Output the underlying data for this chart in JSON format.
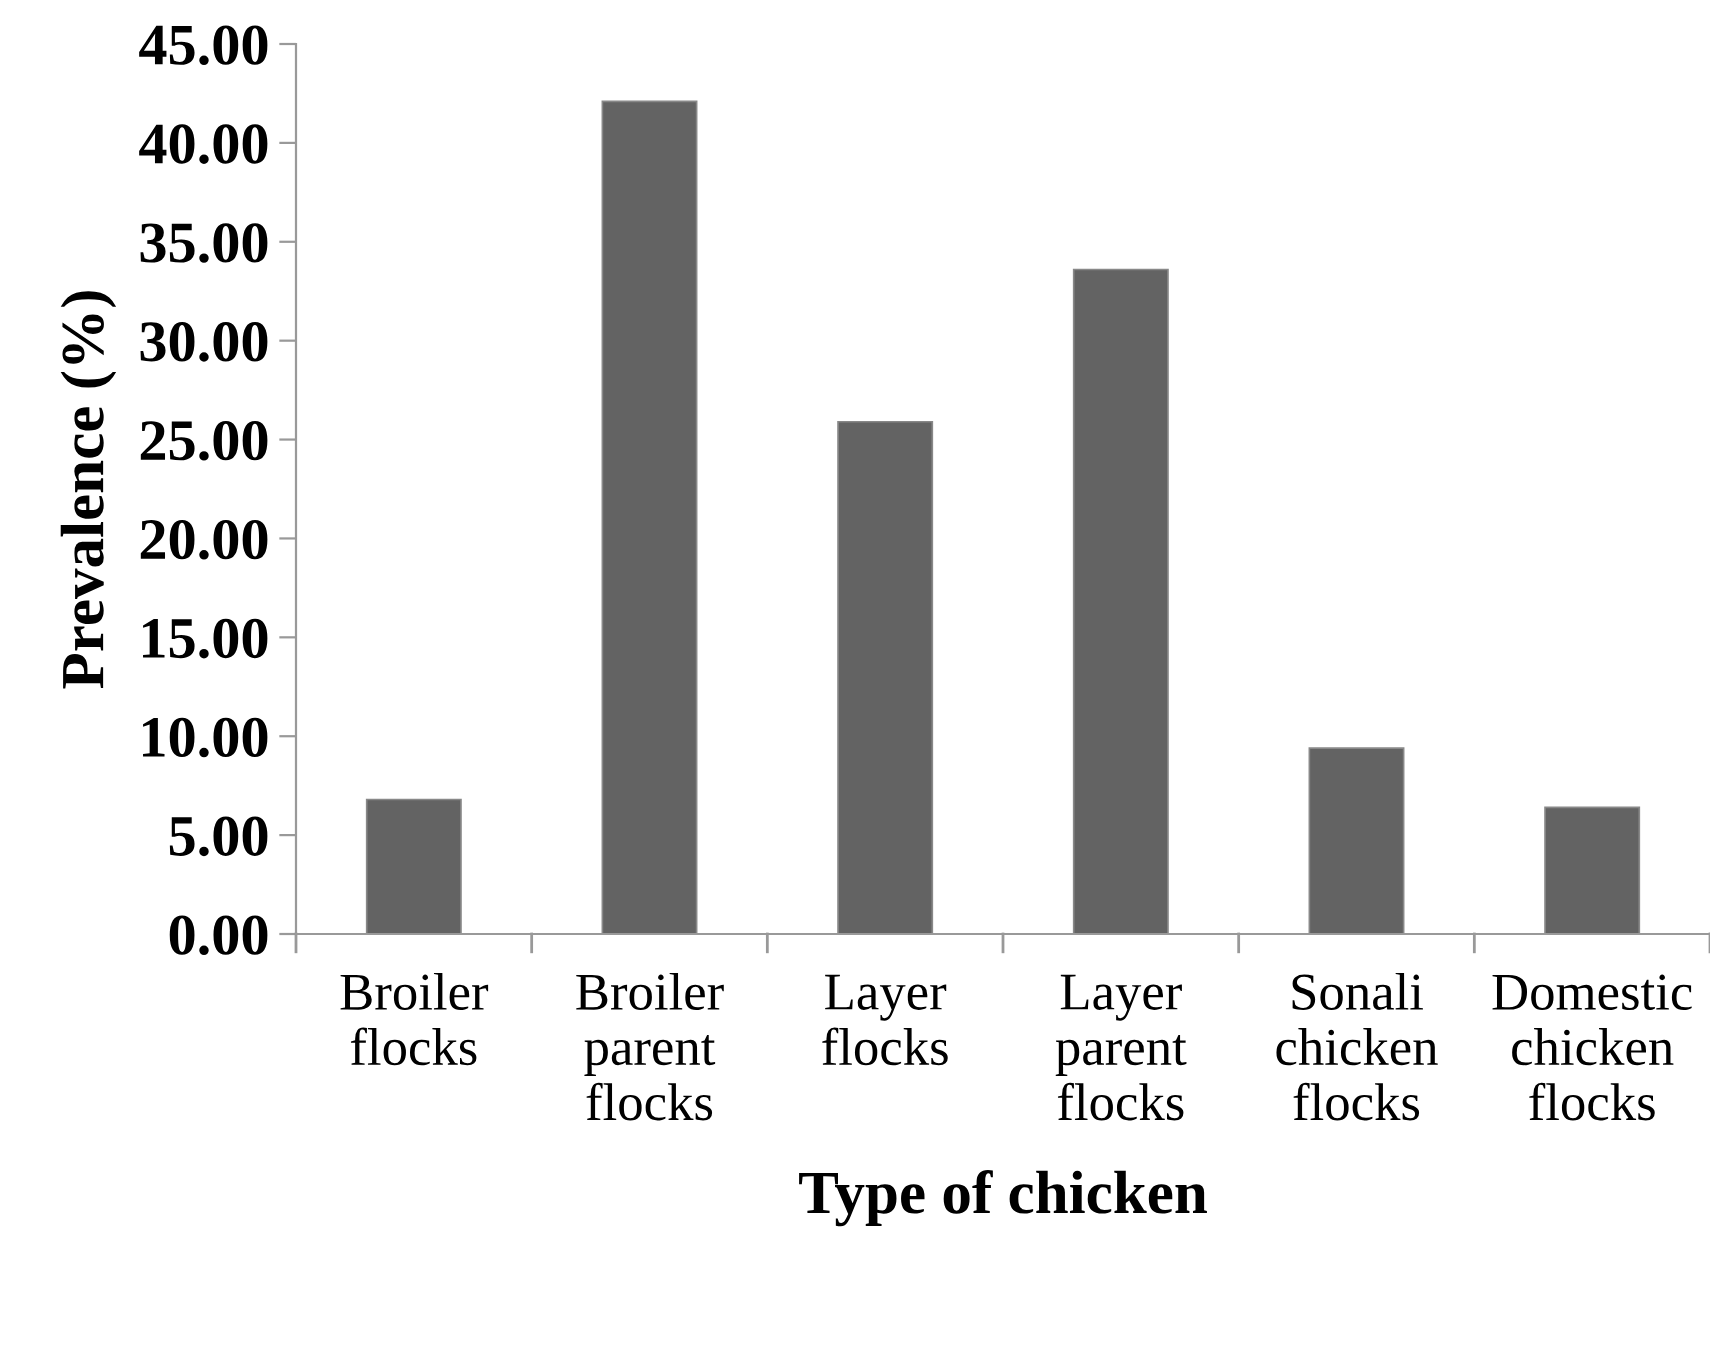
{
  "chart_data": {
    "type": "bar",
    "categories": [
      "Broiler\nflocks",
      "Broiler\nparent\nflocks",
      "Layer\nflocks",
      "Layer\nparent\nflocks",
      "Sonali\nchicken\nflocks",
      "Domestic\nchicken\nflocks"
    ],
    "values": [
      6.8,
      42.1,
      25.9,
      33.6,
      9.4,
      6.4
    ],
    "color": "#636363",
    "xlabel": "Type of chicken",
    "ylabel": "Prevalence (%)",
    "ylim": [
      0,
      45
    ],
    "yticks": [
      {
        "value": 0,
        "label": "0.00"
      },
      {
        "value": 5,
        "label": "5.00"
      },
      {
        "value": 10,
        "label": "10.00"
      },
      {
        "value": 15,
        "label": "15.00"
      },
      {
        "value": 20,
        "label": "20.00"
      },
      {
        "value": 25,
        "label": "25.00"
      },
      {
        "value": 30,
        "label": "30.00"
      },
      {
        "value": 35,
        "label": "35.00"
      },
      {
        "value": 40,
        "label": "40.00"
      },
      {
        "value": 45,
        "label": "45.00"
      }
    ],
    "grid": false
  }
}
